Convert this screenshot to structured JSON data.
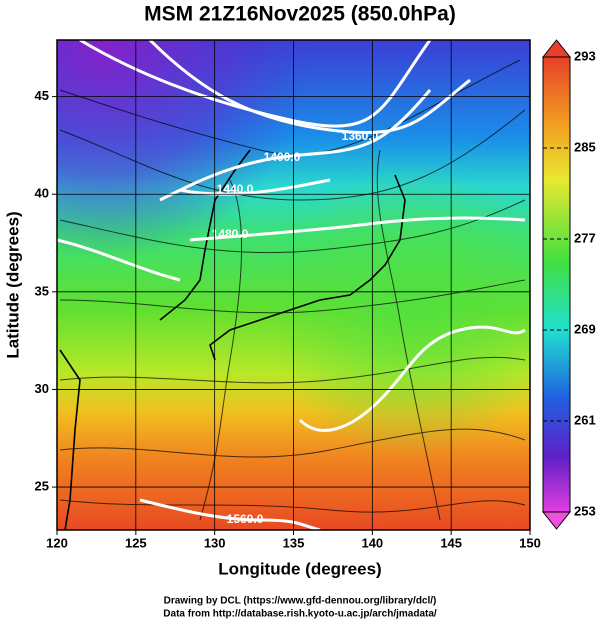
{
  "map": {
    "title": "MSM 21Z16Nov2025 (850.0hPa)",
    "xlabel": "Longitude (degrees)",
    "ylabel": "Latitude  (degrees)",
    "xlim": [
      120,
      150
    ],
    "ylim": [
      22.8,
      47.9
    ],
    "xticks": [
      120,
      125,
      130,
      135,
      140,
      145,
      150
    ],
    "yticks": [
      25,
      30,
      35,
      40,
      45
    ],
    "colorbar": {
      "lim": [
        253,
        293
      ],
      "ticks": [
        253,
        261,
        269,
        277,
        285,
        293
      ]
    },
    "contour_labels": [
      "1360.0",
      "1400.0",
      "1440.0",
      "1480.0",
      "1560.0"
    ]
  },
  "footer": [
    "Drawing by DCL (https://www.gfd-dennou.org/library/dcl/)",
    "Data from http://database.rish.kyoto-u.ac.jp/arch/jmadata/"
  ]
}
